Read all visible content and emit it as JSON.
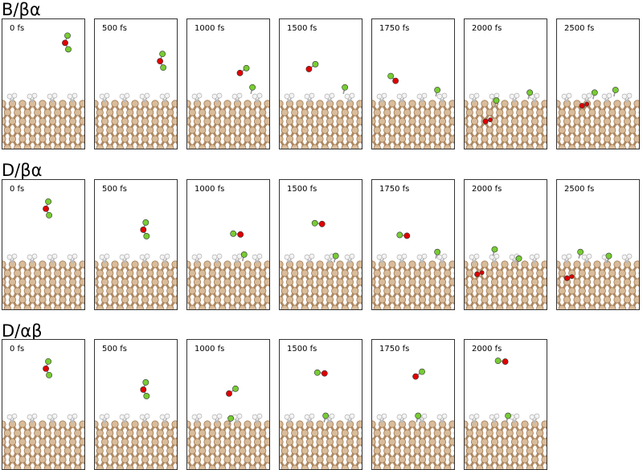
{
  "colors": {
    "slab_bond": "#b08a62",
    "slab_atom": "#d9bc9a",
    "slab_atom_edge": "#a07a55",
    "hydrogen": "#f4f4f4",
    "oxygen": "#e00000",
    "fluorine": "#77cc33"
  },
  "rows": [
    {
      "title": "B/βα",
      "panels": [
        {
          "label": "0 fs",
          "state": "molecule_vertical",
          "mol": [
            0.75,
            0.18
          ]
        },
        {
          "label": "500 fs",
          "state": "molecule_vertical",
          "mol": [
            0.78,
            0.32
          ]
        },
        {
          "label": "1000 fs",
          "state": "molecule_tilted",
          "mol": [
            0.63,
            0.41
          ],
          "ads": [
            [
              0.78,
              0.52
            ]
          ]
        },
        {
          "label": "1500 fs",
          "state": "molecule_tilted",
          "mol": [
            0.35,
            0.38
          ],
          "ads": [
            [
              0.78,
              0.52
            ]
          ]
        },
        {
          "label": "1750 fs",
          "state": "molecule_left",
          "mol": [
            0.28,
            0.47
          ],
          "ads": [
            [
              0.78,
              0.54
            ]
          ]
        },
        {
          "label": "2000 fs",
          "state": "embedded",
          "mol": [
            0.25,
            0.78
          ],
          "ads": [
            [
              0.78,
              0.56
            ],
            [
              0.38,
              0.62
            ]
          ]
        },
        {
          "label": "2500 fs",
          "state": "embedded",
          "mol": [
            0.3,
            0.66
          ],
          "ads": [
            [
              0.45,
              0.56
            ],
            [
              0.7,
              0.54
            ]
          ]
        }
      ]
    },
    {
      "title": "D/βα",
      "panels": [
        {
          "label": "0 fs",
          "state": "molecule_vertical",
          "mol": [
            0.52,
            0.22
          ]
        },
        {
          "label": "500 fs",
          "state": "molecule_vertical",
          "mol": [
            0.58,
            0.38
          ]
        },
        {
          "label": "1000 fs",
          "state": "molecule_horizontal",
          "mol": [
            0.55,
            0.41
          ],
          "ads": [
            [
              0.68,
              0.57
            ]
          ]
        },
        {
          "label": "1500 fs",
          "state": "molecule_horizontal",
          "mol": [
            0.42,
            0.33
          ],
          "ads": [
            [
              0.67,
              0.58
            ]
          ]
        },
        {
          "label": "1750 fs",
          "state": "molecule_horizontal",
          "mol": [
            0.33,
            0.42
          ],
          "ads": [
            [
              0.78,
              0.55
            ]
          ]
        },
        {
          "label": "2000 fs",
          "state": "embedded",
          "mol": [
            0.15,
            0.72
          ],
          "ads": [
            [
              0.36,
              0.53
            ],
            [
              0.65,
              0.6
            ]
          ]
        },
        {
          "label": "2500 fs",
          "state": "embedded",
          "mol": [
            0.12,
            0.75
          ],
          "ads": [
            [
              0.28,
              0.55
            ],
            [
              0.62,
              0.58
            ]
          ]
        }
      ]
    },
    {
      "title": "D/αβ",
      "panels": [
        {
          "label": "0 fs",
          "state": "molecule_vertical",
          "mol": [
            0.52,
            0.22
          ]
        },
        {
          "label": "500 fs",
          "state": "molecule_vertical",
          "mol": [
            0.58,
            0.38
          ]
        },
        {
          "label": "1000 fs",
          "state": "molecule_tilted",
          "mol": [
            0.5,
            0.41
          ],
          "ads": [
            [
              0.52,
              0.6
            ]
          ]
        },
        {
          "label": "1500 fs",
          "state": "molecule_horizontal",
          "mol": [
            0.45,
            0.25
          ],
          "ads": [
            [
              0.55,
              0.58
            ]
          ]
        },
        {
          "label": "1750 fs",
          "state": "molecule_tilted",
          "mol": [
            0.52,
            0.28
          ],
          "ads": [
            [
              0.55,
              0.58
            ]
          ]
        },
        {
          "label": "2000 fs",
          "state": "molecule_horizontal",
          "mol": [
            0.4,
            0.16
          ],
          "ads": [
            [
              0.52,
              0.58
            ]
          ]
        }
      ]
    }
  ]
}
